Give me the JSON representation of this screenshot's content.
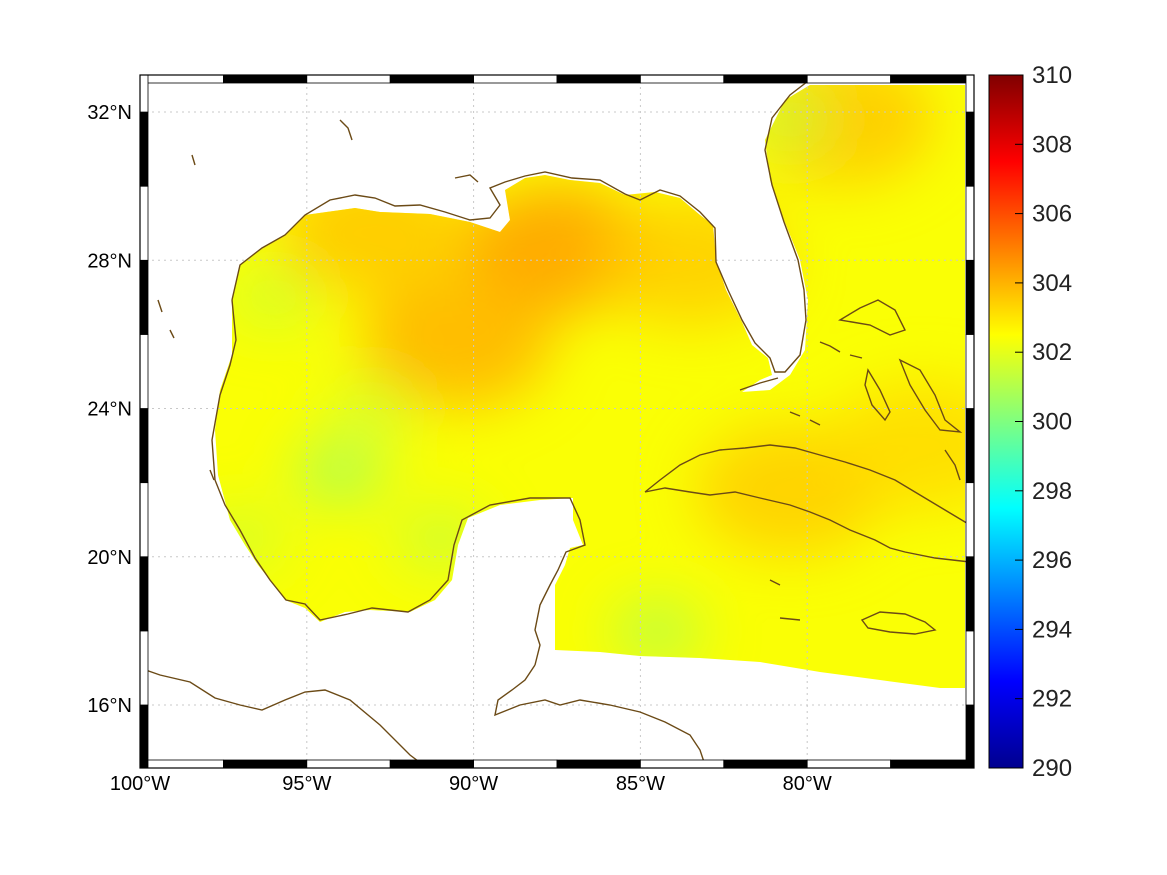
{
  "map": {
    "projection": "equirectangular",
    "lon_range": [
      -100,
      -75
    ],
    "lat_range": [
      14.3,
      33
    ],
    "lon_ticks": [
      {
        "value": -100,
        "label": "100°W"
      },
      {
        "value": -95,
        "label": "95°W"
      },
      {
        "value": -90,
        "label": "90°W"
      },
      {
        "value": -85,
        "label": "85°W"
      },
      {
        "value": -80,
        "label": "80°W"
      }
    ],
    "lat_ticks": [
      {
        "value": 16,
        "label": "16°N"
      },
      {
        "value": 20,
        "label": "20°N"
      },
      {
        "value": 24,
        "label": "24°N"
      },
      {
        "value": 28,
        "label": "28°N"
      },
      {
        "value": 32,
        "label": "32°N"
      }
    ],
    "grid": "dotted",
    "coastline_color": "#6b4a16",
    "colormap": "jet"
  },
  "colorbar": {
    "min": 290,
    "max": 310,
    "ticks": [
      {
        "value": 290,
        "label": "290"
      },
      {
        "value": 292,
        "label": "292"
      },
      {
        "value": 294,
        "label": "294"
      },
      {
        "value": 296,
        "label": "296"
      },
      {
        "value": 298,
        "label": "298"
      },
      {
        "value": 300,
        "label": "300"
      },
      {
        "value": 302,
        "label": "302"
      },
      {
        "value": 304,
        "label": "304"
      },
      {
        "value": 306,
        "label": "306"
      },
      {
        "value": 308,
        "label": "308"
      },
      {
        "value": 310,
        "label": "310"
      }
    ]
  },
  "chart_data": {
    "type": "heatmap",
    "description_units": "sea surface temperature field (K) over Gulf of Mexico and western Caribbean",
    "value_range": [
      290,
      310
    ],
    "background_value": 302.4,
    "hotspots": [
      {
        "lon": -87.5,
        "lat": 28.3,
        "value": 304.4
      },
      {
        "lon": -90.5,
        "lat": 25.8,
        "value": 304.0
      },
      {
        "lon": -93.0,
        "lat": 28.8,
        "value": 303.6
      },
      {
        "lon": -83.5,
        "lat": 28.0,
        "value": 303.5
      },
      {
        "lon": -79.0,
        "lat": 31.8,
        "value": 303.6
      },
      {
        "lon": -80.5,
        "lat": 21.8,
        "value": 303.5
      },
      {
        "lon": -76.5,
        "lat": 23.0,
        "value": 303.2
      }
    ],
    "coldspots": [
      {
        "lon": -94.0,
        "lat": 22.3,
        "value": 300.6
      },
      {
        "lon": -96.0,
        "lat": 27.0,
        "value": 301.5
      },
      {
        "lon": -84.5,
        "lat": 18.0,
        "value": 300.9
      },
      {
        "lon": -80.5,
        "lat": 31.8,
        "value": 301.4
      },
      {
        "lon": -91.0,
        "lat": 20.5,
        "value": 301.3
      },
      {
        "lon": -97.0,
        "lat": 20.5,
        "value": 301.5
      },
      {
        "lon": -93.0,
        "lat": 24.0,
        "value": 301.6
      }
    ]
  }
}
